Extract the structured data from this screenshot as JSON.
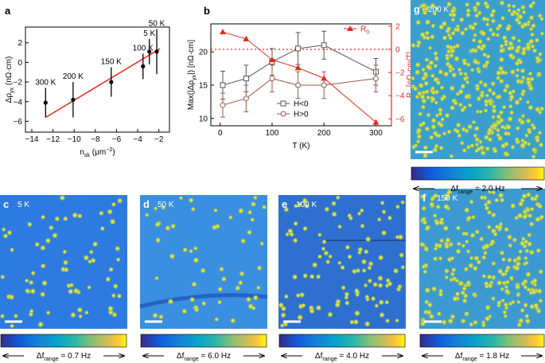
{
  "chart_data": [
    {
      "type": "scatter",
      "panel": "a",
      "xlabel": [
        {
          "t": "n"
        },
        {
          "sub": "sk"
        },
        {
          "t": " (μm"
        },
        {
          "sup": "−2"
        },
        {
          "t": ")"
        }
      ],
      "ylabel": [
        {
          "t": "Δρ"
        },
        {
          "sub": "yx"
        },
        {
          "t": " (nΩ·cm)"
        }
      ],
      "xlim": [
        -14.6,
        -1
      ],
      "xticks": [
        {
          "value": -14,
          "label": "−14"
        },
        {
          "value": -12,
          "label": "−12"
        },
        {
          "value": -10,
          "label": "−10"
        },
        {
          "value": -8,
          "label": "−8"
        },
        {
          "value": -6,
          "label": "−6"
        },
        {
          "value": -4,
          "label": "−4"
        },
        {
          "value": -2,
          "label": "−2"
        }
      ],
      "ylim": [
        -7.1,
        3.6
      ],
      "yticks": [
        {
          "value": -6,
          "label": "−6"
        },
        {
          "value": -4,
          "label": "−4"
        },
        {
          "value": -2,
          "label": "−2"
        },
        0,
        2
      ],
      "x": [
        -12.7,
        -10.1,
        -6.5,
        -3.5,
        -2.9,
        -2.2
      ],
      "values": [
        -4.1,
        -3.8,
        -2.0,
        -0.4,
        1.1,
        1.1
      ],
      "errors": [
        1.5,
        1.8,
        1.5,
        1.3,
        1.3,
        2.3
      ],
      "point_labels": [
        "300 K",
        "200 K",
        "150 K",
        "100 K",
        "5 K",
        "50 K"
      ],
      "color": "#000000",
      "fit": {
        "x": [
          -12.7,
          -1.9
        ],
        "values": [
          -5.6,
          1.4
        ],
        "color": "#e8271d"
      }
    },
    {
      "type": "line",
      "panel": "b",
      "xlabel": "T (K)",
      "ylabel": [
        {
          "t": "Max(|Δρ"
        },
        {
          "sub": "yx"
        },
        {
          "t": "|) [nΩ·cm]"
        }
      ],
      "y2label": [
        {
          "t": "R"
        },
        {
          "sub": "0"
        },
        {
          "t": " [nΩ·cm/T]"
        }
      ],
      "xlim": [
        -18,
        330
      ],
      "xticks": [
        0,
        100,
        200,
        300
      ],
      "ylim": [
        8.9,
        24.2
      ],
      "yticks": [
        10,
        15,
        20
      ],
      "y2lim": [
        -6.6,
        2.2
      ],
      "y2ticks": [
        2,
        0,
        {
          "value": -2,
          "label": "−2"
        },
        {
          "value": -4,
          "label": "−4"
        },
        {
          "value": -6,
          "label": "−6"
        }
      ],
      "y2_refline": 0,
      "x": [
        5,
        50,
        100,
        150,
        200,
        300
      ],
      "series": [
        {
          "name": "H<0",
          "color": "#555555",
          "marker": "square",
          "values": [
            15,
            16,
            18.5,
            20.5,
            21,
            17
          ],
          "errors": [
            2.1,
            2,
            2,
            2.4,
            2.1,
            2
          ]
        },
        {
          "name": "H>0",
          "color": "#9a5a4a",
          "marker": "circle",
          "values": [
            12,
            13,
            16,
            15,
            15,
            16
          ],
          "errors": [
            1.8,
            2,
            2,
            2,
            2,
            2
          ]
        },
        {
          "name": [
            {
              "t": "R"
            },
            {
              "sub": "0"
            }
          ],
          "color": "#e8271d",
          "marker": "triangle",
          "axis": "y2",
          "values": [
            1.5,
            0.9,
            -0.9,
            -1.6,
            -2.5,
            -6.3
          ]
        }
      ]
    }
  ],
  "image_panels": [
    {
      "label": "c",
      "temperature": "5 K",
      "colorbar": [
        {
          "t": "Δf"
        },
        {
          "sub": "range"
        },
        {
          "t": " = 0.7 Hz"
        }
      ]
    },
    {
      "label": "d",
      "temperature": "50 K",
      "colorbar": [
        {
          "t": "Δf"
        },
        {
          "sub": "range"
        },
        {
          "t": " = 6.0 Hz"
        }
      ]
    },
    {
      "label": "e",
      "temperature": "100 K",
      "colorbar": [
        {
          "t": "Δf"
        },
        {
          "sub": "range"
        },
        {
          "t": " = 4.0 Hz"
        }
      ]
    },
    {
      "label": "f",
      "temperature": "150 K",
      "colorbar": [
        {
          "t": "Δf"
        },
        {
          "sub": "range"
        },
        {
          "t": " = 1.8 Hz"
        }
      ]
    },
    {
      "label": "g",
      "temperature": "200 K",
      "colorbar": [
        {
          "t": "Δf"
        },
        {
          "sub": "range"
        },
        {
          "t": " = 2.0 Hz"
        }
      ]
    }
  ]
}
